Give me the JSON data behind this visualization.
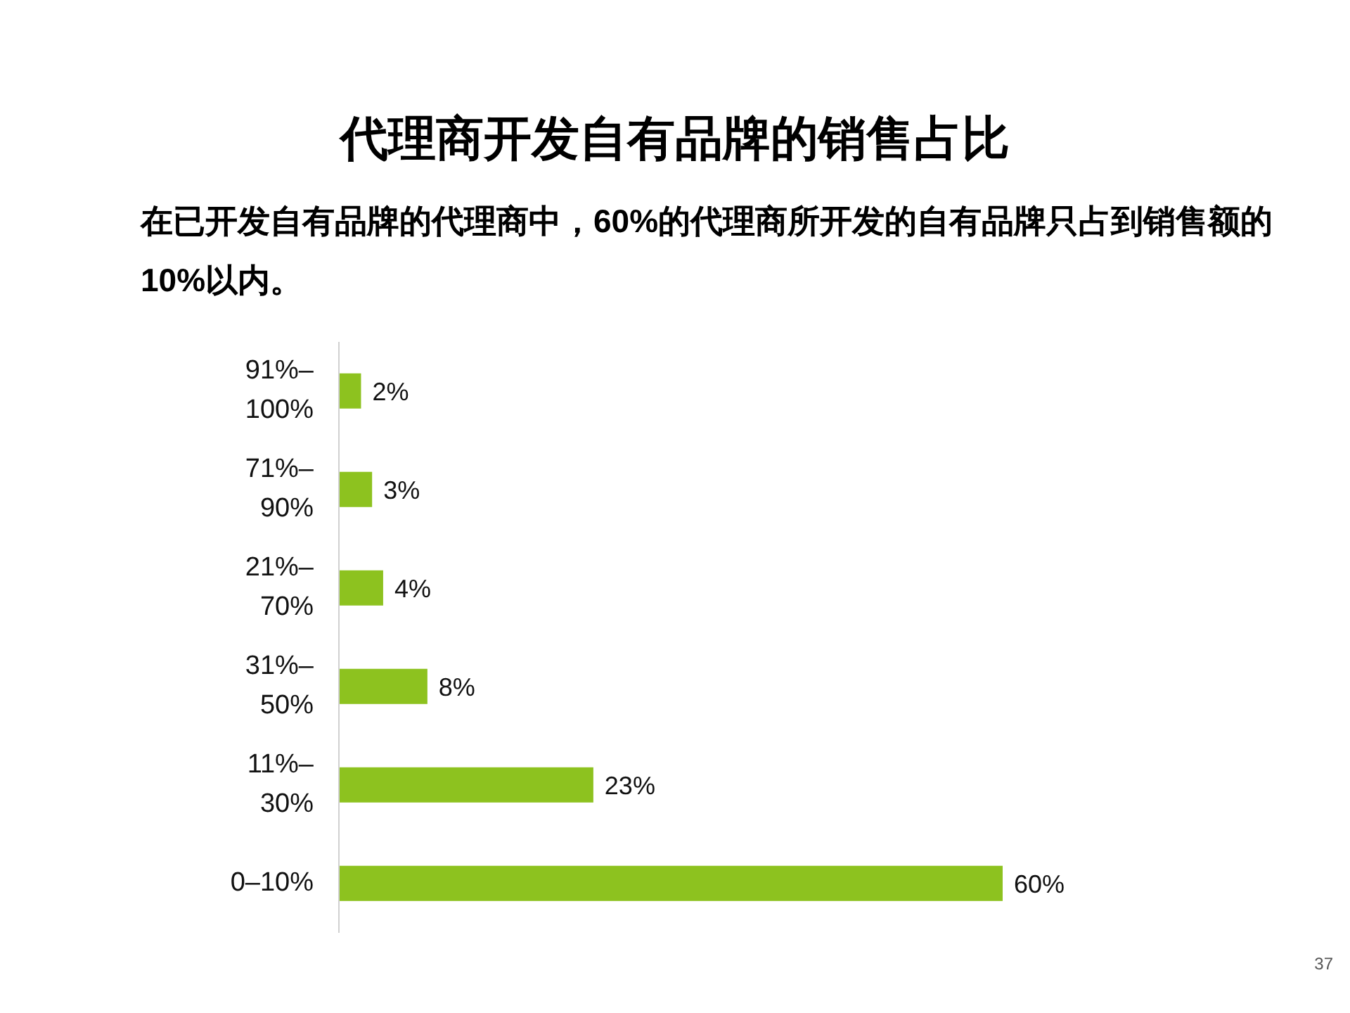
{
  "chart_data": {
    "type": "bar",
    "orientation": "horizontal",
    "title": "代理商开发自有品牌的销售占比",
    "subtitle": "在已开发自有品牌的代理商中，60%的代理商所开发的自有品牌只占到销售额的10%以内。",
    "categories": [
      "91%–100%",
      "71%–90%",
      "21%–70%",
      "31%–50%",
      "11%–30%",
      "0–10%"
    ],
    "values": [
      2,
      3,
      4,
      8,
      23,
      60
    ],
    "value_labels": [
      "2%",
      "3%",
      "4%",
      "8%",
      "23%",
      "60%"
    ],
    "color": "#8dc21f",
    "annotations": [
      "37"
    ]
  }
}
